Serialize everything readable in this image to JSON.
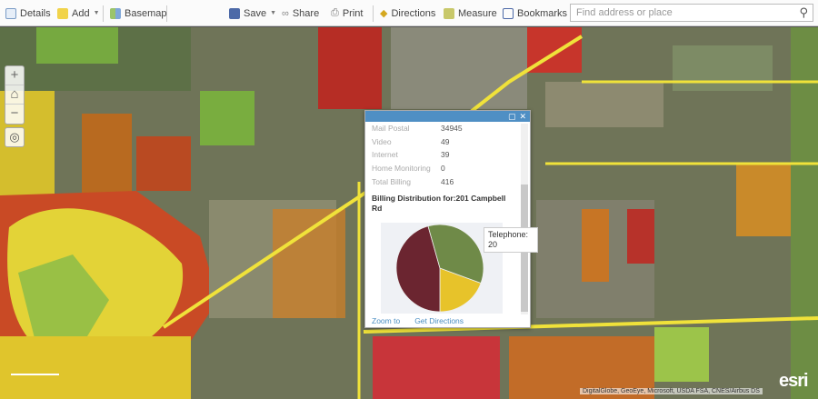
{
  "toolbar": {
    "details": "Details",
    "add": "Add",
    "basemap": "Basemap",
    "save": "Save",
    "share": "Share",
    "print": "Print",
    "directions": "Directions",
    "measure": "Measure",
    "bookmarks": "Bookmarks",
    "search_placeholder": "Find address or place"
  },
  "map": {
    "zoom_in": "+",
    "home": "⌂",
    "zoom_out": "−",
    "attribution": "DigitalGlobe, GeoEye, Microsoft, USDA FSA, CNES/Airbus DS",
    "logo": "esri",
    "colors": {
      "red": "#b8322a",
      "orange": "#c97a22",
      "yellow": "#e8d12a",
      "green": "#7fb23a",
      "road": "#f2e33a"
    }
  },
  "popup": {
    "fields": [
      {
        "label": "Mail Postal",
        "value": "34945"
      },
      {
        "label": "Video",
        "value": "49"
      },
      {
        "label": "Internet",
        "value": "39"
      },
      {
        "label": "Home Monitoring",
        "value": "0"
      },
      {
        "label": "Total Billing",
        "value": "416"
      }
    ],
    "chart_title": "Billing Distribution for:201 Campbell Rd",
    "zoom_to": "Zoom to",
    "get_directions": "Get Directions",
    "tooltip_label": "Telephone:",
    "tooltip_value": "20"
  },
  "chart_data": {
    "type": "pie",
    "slices": [
      {
        "label": "Telephone",
        "value": 20,
        "color": "#e7c32a"
      },
      {
        "value": 47,
        "color": "#6b2530"
      },
      {
        "value": 36,
        "color": "#6f8a48"
      }
    ]
  }
}
